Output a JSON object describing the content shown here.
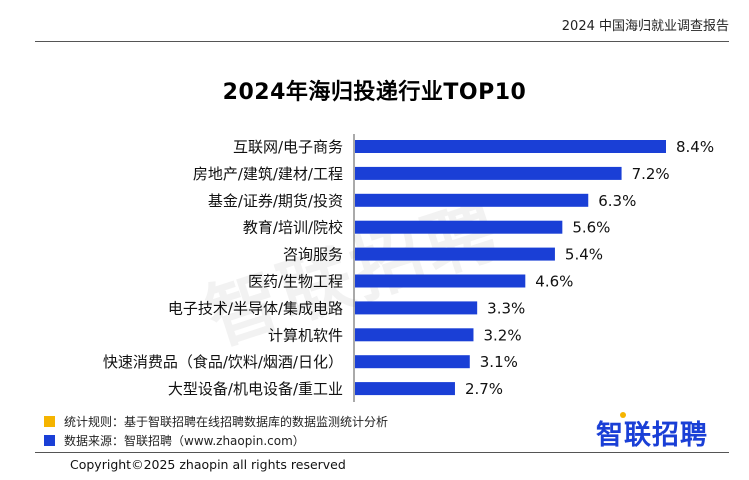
{
  "header": {
    "title": "2024 中国海归就业调查报告"
  },
  "watermark": "智联招聘",
  "chart_data": {
    "type": "bar",
    "orientation": "horizontal",
    "title": "2024年海归投递行业TOP10",
    "categories": [
      "互联网/电子商务",
      "房地产/建筑/建材/工程",
      "基金/证券/期货/投资",
      "教育/培训/院校",
      "咨询服务",
      "医药/生物工程",
      "电子技术/半导体/集成电路",
      "计算机软件",
      "快速消费品（食品/饮料/烟酒/日化）",
      "大型设备/机电设备/重工业"
    ],
    "values": [
      8.4,
      7.2,
      6.3,
      5.6,
      5.4,
      4.6,
      3.3,
      3.2,
      3.1,
      2.7
    ],
    "value_labels": [
      "8.4%",
      "7.2%",
      "6.3%",
      "5.6%",
      "5.4%",
      "4.6%",
      "3.3%",
      "3.2%",
      "3.1%",
      "2.7%"
    ],
    "bar_color": "#1a3fd6",
    "xlim": [
      0,
      8.4
    ],
    "grid": false,
    "legend": "none"
  },
  "notes": {
    "rule": {
      "text": "统计规则：基于智联招聘在线招聘数据库的数据监测统计分析",
      "color": "#f5b400"
    },
    "source": {
      "text": "数据来源：智联招聘（www.zhaopin.com）",
      "color": "#1a3fd6"
    }
  },
  "logo": {
    "text": "智联招聘",
    "color": "#1a3fd6",
    "dot_color": "#f5b400"
  },
  "footer": {
    "copyright": "Copyright©2025 zhaopin all rights reserved"
  }
}
